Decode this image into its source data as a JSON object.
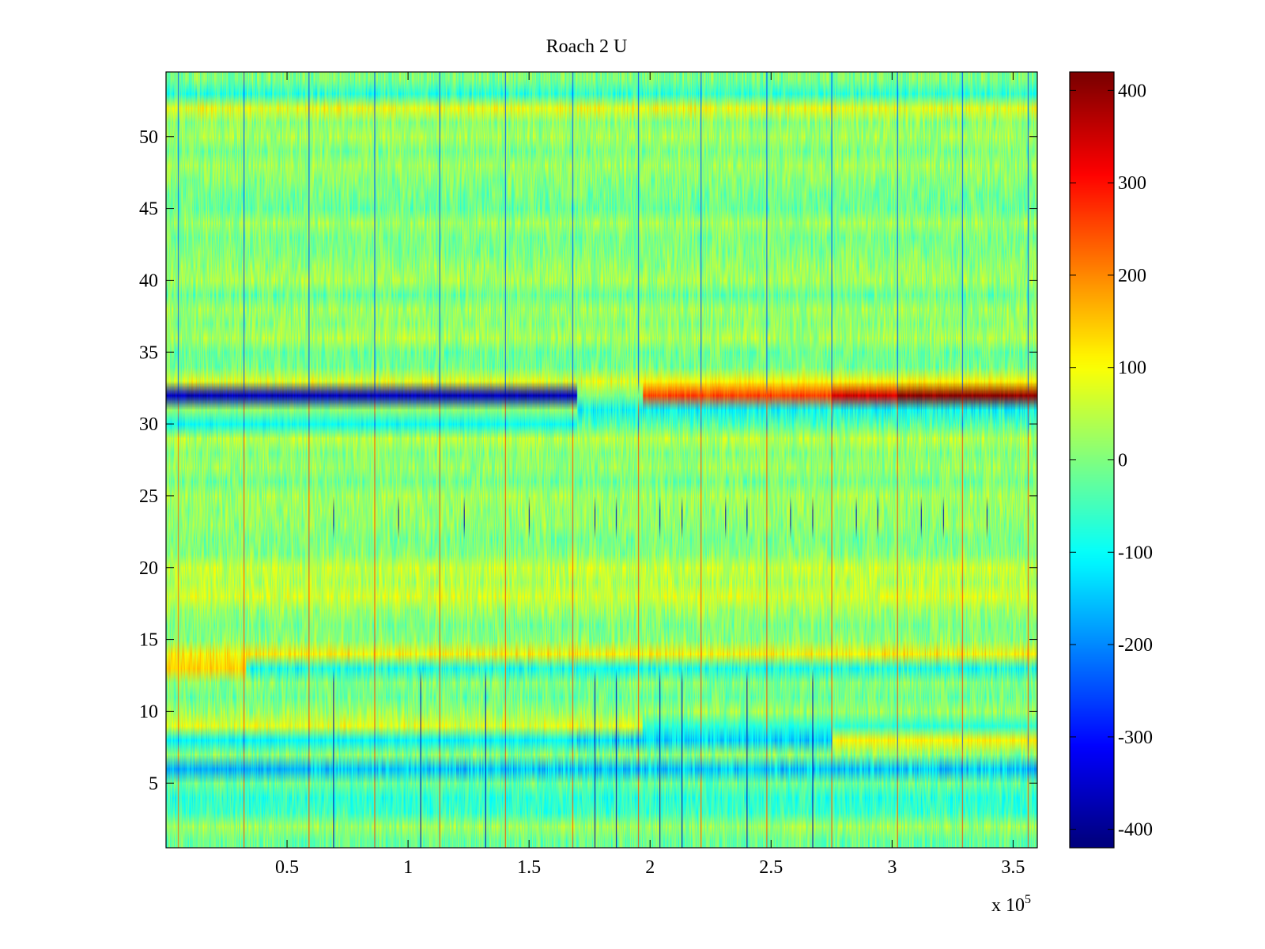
{
  "chart_data": {
    "type": "heatmap",
    "title": "Roach 2 U",
    "xlabel": "",
    "ylabel": "",
    "x_exponent_label": {
      "base": "x 10",
      "power": "5"
    },
    "xlim": [
      0,
      3.6
    ],
    "ylim": [
      0.5,
      54.5
    ],
    "x_ticks": [
      0.5,
      1,
      1.5,
      2,
      2.5,
      3,
      3.5
    ],
    "x_tick_labels": [
      "0.5",
      "1",
      "1.5",
      "2",
      "2.5",
      "3",
      "3.5"
    ],
    "y_ticks": [
      5,
      10,
      15,
      20,
      25,
      30,
      35,
      40,
      45,
      50
    ],
    "y_tick_labels": [
      "5",
      "10",
      "15",
      "20",
      "25",
      "30",
      "35",
      "40",
      "45",
      "50"
    ],
    "rows": 54,
    "colormap": "jet",
    "clim": [
      -420,
      420
    ],
    "colorbar": {
      "ticks": [
        -400,
        -300,
        -200,
        -100,
        0,
        100,
        200,
        300,
        400
      ],
      "tick_labels": [
        "-400",
        "-300",
        "-200",
        "-100",
        "0",
        "100",
        "200",
        "300",
        "400"
      ]
    },
    "base_row_means": [
      -20,
      25,
      -55,
      -70,
      -20,
      -150,
      10,
      -140,
      80,
      20,
      -15,
      5,
      -90,
      110,
      10,
      -5,
      25,
      70,
      40,
      60,
      5,
      -5,
      15,
      20,
      30,
      -10,
      20,
      5,
      45,
      -40,
      -100,
      0,
      80,
      -10,
      -15,
      35,
      10,
      25,
      -20,
      30,
      15,
      0,
      -5,
      25,
      -20,
      -10,
      5,
      25,
      -5,
      30,
      10,
      90,
      -70,
      0
    ],
    "segments": [
      {
        "x_start": 0.0,
        "x_end": 1.7,
        "row": 32,
        "value": -370
      },
      {
        "x_start": 0.0,
        "x_end": 1.7,
        "row": 31,
        "value": 10
      },
      {
        "x_start": 0.0,
        "x_end": 0.6,
        "row": 6,
        "value": -170
      },
      {
        "x_start": 0.0,
        "x_end": 1.7,
        "row": 8,
        "value": -110
      },
      {
        "x_start": 0.0,
        "x_end": 1.7,
        "row": 30,
        "value": -100
      },
      {
        "x_start": 0.0,
        "x_end": 0.33,
        "row": 13,
        "value": 140
      },
      {
        "x_start": 1.7,
        "x_end": 1.97,
        "row": 32,
        "value": 0
      },
      {
        "x_start": 1.7,
        "x_end": 1.97,
        "row": 13,
        "value": -100
      },
      {
        "x_start": 1.97,
        "x_end": 2.75,
        "row": 32,
        "value": 260
      },
      {
        "x_start": 2.75,
        "x_end": 3.02,
        "row": 32,
        "value": 350
      },
      {
        "x_start": 3.02,
        "x_end": 3.6,
        "row": 32,
        "value": 410
      },
      {
        "x_start": 1.97,
        "x_end": 3.6,
        "row": 33,
        "value": 110
      },
      {
        "x_start": 2.75,
        "x_end": 3.6,
        "row": 8,
        "value": 110
      },
      {
        "x_start": 1.97,
        "x_end": 3.6,
        "row": 9,
        "value": -70
      }
    ],
    "vertical_stripes": [
      {
        "x": 0.05,
        "upper_value": -230,
        "lower_value": 220
      },
      {
        "x": 0.32,
        "upper_value": -250,
        "lower_value": 250
      },
      {
        "x": 0.59,
        "upper_value": -250,
        "lower_value": 250
      },
      {
        "x": 0.86,
        "upper_value": -250,
        "lower_value": 250
      },
      {
        "x": 1.13,
        "upper_value": -250,
        "lower_value": 250
      },
      {
        "x": 1.4,
        "upper_value": -250,
        "lower_value": 250
      },
      {
        "x": 1.68,
        "upper_value": -250,
        "lower_value": 250
      },
      {
        "x": 1.95,
        "upper_value": -250,
        "lower_value": 250
      },
      {
        "x": 2.21,
        "upper_value": -250,
        "lower_value": 250
      },
      {
        "x": 2.48,
        "upper_value": -250,
        "lower_value": 250
      },
      {
        "x": 2.75,
        "upper_value": -250,
        "lower_value": 250
      },
      {
        "x": 3.02,
        "upper_value": -250,
        "lower_value": 250
      },
      {
        "x": 3.29,
        "upper_value": -250,
        "lower_value": 250
      },
      {
        "x": 3.56,
        "upper_value": -250,
        "lower_value": 250
      }
    ],
    "dark_marks": {
      "value": -380,
      "rows_23_24_x": [
        0.69,
        0.96,
        1.23,
        1.5,
        1.77,
        1.86,
        2.04,
        2.13,
        2.31,
        2.4,
        2.58,
        2.67,
        2.85,
        2.94,
        3.12,
        3.21,
        3.39
      ],
      "rows_1_12_x": [
        0.69,
        1.05,
        1.32,
        1.77,
        1.86,
        2.04,
        2.13,
        2.4,
        2.67
      ]
    }
  },
  "colors": {
    "axis": "#000000",
    "background": "#ffffff"
  }
}
